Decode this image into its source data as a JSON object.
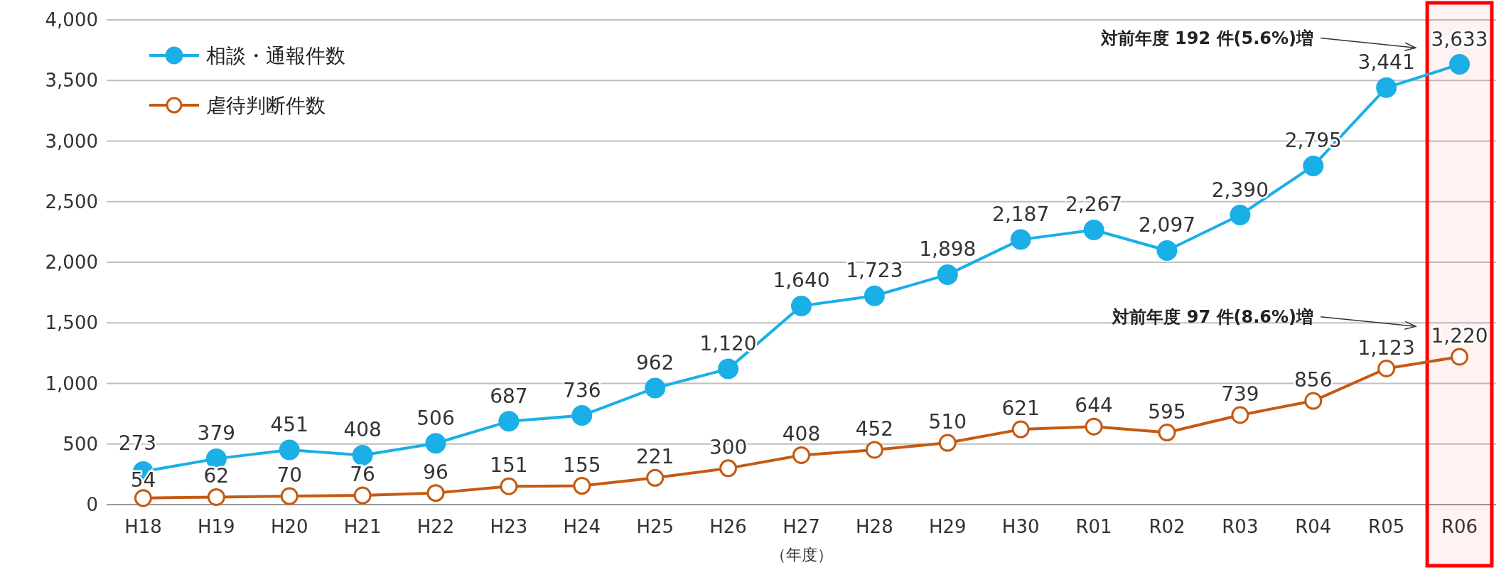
{
  "chart_data": {
    "type": "line",
    "xlabel": "（年度）",
    "categories": [
      "H18",
      "H19",
      "H20",
      "H21",
      "H22",
      "H23",
      "H24",
      "H25",
      "H26",
      "H27",
      "H28",
      "H29",
      "H30",
      "R01",
      "R02",
      "R03",
      "R04",
      "R05",
      "R06"
    ],
    "series": [
      {
        "name": "相談・通報件数",
        "color": "#1aafe6",
        "marker": "circle",
        "values": [
          273,
          379,
          451,
          408,
          506,
          687,
          736,
          962,
          1120,
          1640,
          1723,
          1898,
          2187,
          2267,
          2097,
          2390,
          2795,
          3441,
          3633
        ],
        "value_labels": [
          "273",
          "379",
          "451",
          "408",
          "506",
          "687",
          "736",
          "962",
          "1,120",
          "1,640",
          "1,723",
          "1,898",
          "2,187",
          "2,267",
          "2,097",
          "2,390",
          "2,795",
          "3,441",
          "3,633"
        ]
      },
      {
        "name": "虐待判断件数",
        "color": "#c55a11",
        "marker": "circle",
        "values": [
          54,
          62,
          70,
          76,
          96,
          151,
          155,
          221,
          300,
          408,
          452,
          510,
          621,
          644,
          595,
          739,
          856,
          1123,
          1220
        ],
        "value_labels": [
          "54",
          "62",
          "70",
          "76",
          "96",
          "151",
          "155",
          "221",
          "300",
          "408",
          "452",
          "510",
          "621",
          "644",
          "595",
          "739",
          "856",
          "1,123",
          "1,220"
        ]
      }
    ],
    "ylim": [
      0,
      4000
    ],
    "yticks": [
      0,
      500,
      {
        "value": 1000,
        "label": "1,000"
      },
      {
        "value": 1500,
        "label": "1,500"
      },
      {
        "value": 2000,
        "label": "2,000"
      },
      {
        "value": 2500,
        "label": "2,500"
      },
      {
        "value": 3000,
        "label": "3,000"
      },
      {
        "value": 3500,
        "label": "3,500"
      },
      {
        "value": 4000,
        "label": "4,000"
      }
    ],
    "grid": "y",
    "legend": "top left",
    "annotations": [
      "対前年度 192 件(5.6%)増",
      "対前年度 97 件(8.6%)増"
    ],
    "bands": [
      {
        "axis": "x",
        "from": "R06",
        "to": "R06",
        "color": "#ff0000"
      }
    ]
  }
}
